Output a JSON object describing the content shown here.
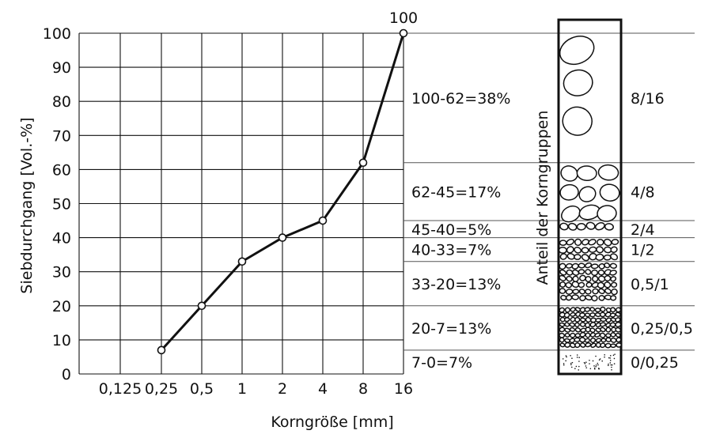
{
  "chart_data": {
    "type": "line",
    "xlabel": "Korngröße [mm]",
    "ylabel": "Siebdurchgang [Vol.-%]",
    "x_categories": [
      "0,125",
      "0,25",
      "0,5",
      "1",
      "2",
      "4",
      "8",
      "16"
    ],
    "y_ticks": [
      "0",
      "10",
      "20",
      "30",
      "40",
      "50",
      "60",
      "70",
      "80",
      "90",
      "100"
    ],
    "ylim": [
      0,
      100
    ],
    "grid": true,
    "series": [
      {
        "x": [
          "0,25",
          "0,5",
          "1",
          "2",
          "4",
          "8",
          "16"
        ],
        "values": [
          7,
          20,
          33,
          40,
          45,
          62,
          100
        ]
      }
    ],
    "point_label": "100",
    "groups_title": "Anteil der Korngruppen",
    "groups": [
      {
        "calc": "100-62=38%",
        "size": "8/16",
        "lower": 62,
        "upper": 100
      },
      {
        "calc": "62-45=17%",
        "size": "4/8",
        "lower": 45,
        "upper": 62
      },
      {
        "calc": "45-40=5%",
        "size": "2/4",
        "lower": 40,
        "upper": 45
      },
      {
        "calc": "40-33=7%",
        "size": "1/2",
        "lower": 33,
        "upper": 40
      },
      {
        "calc": "33-20=13%",
        "size": "0,5/1",
        "lower": 20,
        "upper": 33
      },
      {
        "calc": "20-7=13%",
        "size": "0,25/0,5",
        "lower": 7,
        "upper": 20
      },
      {
        "calc": "7-0=7%",
        "size": "0/0,25",
        "lower": 0,
        "upper": 7
      }
    ]
  }
}
